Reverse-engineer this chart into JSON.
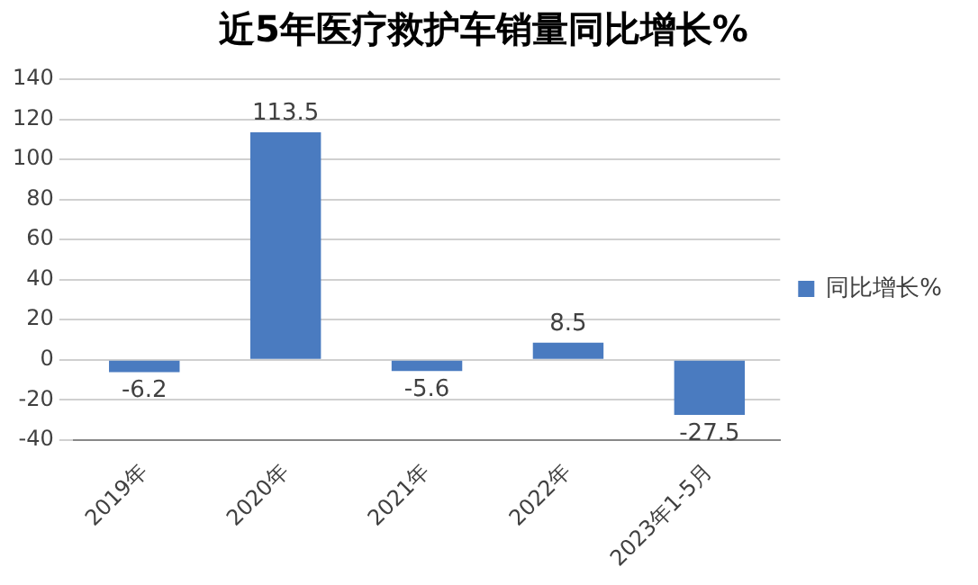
{
  "chart_data": {
    "type": "bar",
    "title": "近5年医疗救护车销量同比增长%",
    "categories": [
      "2019年",
      "2020年",
      "2021年",
      "2022年",
      "2023年1-5月"
    ],
    "series": [
      {
        "name": "同比增长%",
        "color": "#4a7bc0",
        "values": [
          -6.2,
          113.5,
          -5.6,
          8.5,
          -27.5
        ]
      }
    ],
    "ylim": [
      -40,
      140
    ],
    "yticks": [
      -40,
      -20,
      0,
      20,
      40,
      60,
      80,
      100,
      120,
      140
    ],
    "grid": "y",
    "legend": "right",
    "data_labels": true
  }
}
